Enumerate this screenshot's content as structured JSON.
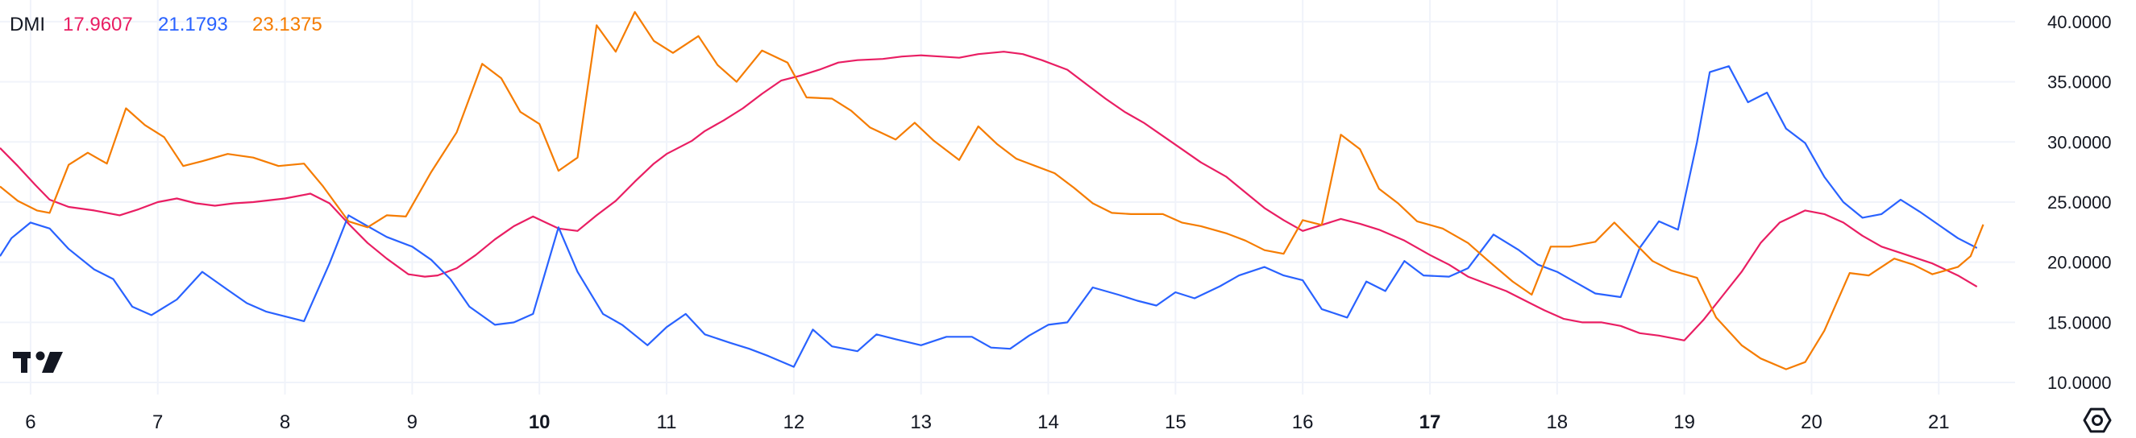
{
  "legend": {
    "indicator": "DMI",
    "values": [
      "17.9607",
      "21.1793",
      "23.1375"
    ]
  },
  "icons": {
    "logo": "tradingview-logo-icon",
    "settings": "settings-gear-icon"
  },
  "colors": {
    "adx": "#e91e63",
    "plus_di": "#2962ff",
    "minus_di": "#f57c00",
    "text": "#131722",
    "grid": "#f0f3fa"
  },
  "chart_data": {
    "type": "line",
    "title": "DMI",
    "xlabel": "",
    "ylabel": "",
    "ylim": [
      9,
      41.8
    ],
    "xlim": [
      5.76,
      21.6
    ],
    "y_ticks": [
      "40.0000",
      "35.0000",
      "30.0000",
      "25.0000",
      "20.0000",
      "15.0000",
      "10.0000"
    ],
    "y_tick_values": [
      40,
      35,
      30,
      25,
      20,
      15,
      10
    ],
    "x_ticks": [
      "6",
      "7",
      "8",
      "9",
      "10",
      "11",
      "12",
      "13",
      "14",
      "15",
      "16",
      "17",
      "18",
      "19",
      "20",
      "21"
    ],
    "x_tick_values": [
      6,
      7,
      8,
      9,
      10,
      11,
      12,
      13,
      14,
      15,
      16,
      17,
      18,
      19,
      20,
      21
    ],
    "x_ticks_bold": [
      "10",
      "17"
    ],
    "grid": true,
    "legend_position": "top-left",
    "series": [
      {
        "values": [
          [
            5.76,
            29.5
          ],
          [
            5.9,
            28.0
          ],
          [
            6.04,
            26.4
          ],
          [
            6.15,
            25.2
          ],
          [
            6.3,
            24.6
          ],
          [
            6.5,
            24.3
          ],
          [
            6.7,
            23.9
          ],
          [
            6.85,
            24.4
          ],
          [
            7.0,
            25.0
          ],
          [
            7.15,
            25.3
          ],
          [
            7.3,
            24.9
          ],
          [
            7.45,
            24.7
          ],
          [
            7.6,
            24.9
          ],
          [
            7.75,
            25.0
          ],
          [
            8.0,
            25.3
          ],
          [
            8.2,
            25.7
          ],
          [
            8.35,
            24.9
          ],
          [
            8.5,
            23.2
          ],
          [
            8.65,
            21.6
          ],
          [
            8.8,
            20.3
          ],
          [
            8.97,
            19.0
          ],
          [
            9.1,
            18.8
          ],
          [
            9.2,
            18.9
          ],
          [
            9.35,
            19.5
          ],
          [
            9.5,
            20.6
          ],
          [
            9.65,
            21.9
          ],
          [
            9.8,
            23.0
          ],
          [
            9.95,
            23.8
          ],
          [
            10.05,
            23.3
          ],
          [
            10.15,
            22.8
          ],
          [
            10.3,
            22.6
          ],
          [
            10.45,
            23.9
          ],
          [
            10.6,
            25.1
          ],
          [
            10.75,
            26.7
          ],
          [
            10.9,
            28.2
          ],
          [
            11.0,
            29.0
          ],
          [
            11.2,
            30.1
          ],
          [
            11.3,
            30.9
          ],
          [
            11.45,
            31.8
          ],
          [
            11.6,
            32.8
          ],
          [
            11.75,
            34.0
          ],
          [
            11.9,
            35.1
          ],
          [
            12.05,
            35.5
          ],
          [
            12.2,
            36.0
          ],
          [
            12.35,
            36.6
          ],
          [
            12.5,
            36.8
          ],
          [
            12.7,
            36.9
          ],
          [
            12.85,
            37.1
          ],
          [
            13.0,
            37.2
          ],
          [
            13.15,
            37.1
          ],
          [
            13.3,
            37.0
          ],
          [
            13.45,
            37.3
          ],
          [
            13.65,
            37.5
          ],
          [
            13.8,
            37.3
          ],
          [
            13.95,
            36.8
          ],
          [
            14.15,
            36.0
          ],
          [
            14.3,
            34.8
          ],
          [
            14.45,
            33.6
          ],
          [
            14.6,
            32.5
          ],
          [
            14.75,
            31.6
          ],
          [
            14.9,
            30.5
          ],
          [
            15.05,
            29.4
          ],
          [
            15.2,
            28.3
          ],
          [
            15.4,
            27.1
          ],
          [
            15.55,
            25.8
          ],
          [
            15.7,
            24.5
          ],
          [
            15.85,
            23.5
          ],
          [
            16.0,
            22.6
          ],
          [
            16.15,
            23.1
          ],
          [
            16.3,
            23.6
          ],
          [
            16.45,
            23.2
          ],
          [
            16.6,
            22.7
          ],
          [
            16.8,
            21.8
          ],
          [
            17.0,
            20.6
          ],
          [
            17.15,
            19.8
          ],
          [
            17.3,
            18.8
          ],
          [
            17.45,
            18.2
          ],
          [
            17.6,
            17.6
          ],
          [
            17.75,
            16.8
          ],
          [
            17.9,
            16.0
          ],
          [
            18.05,
            15.3
          ],
          [
            18.2,
            15.0
          ],
          [
            18.35,
            15.0
          ],
          [
            18.5,
            14.7
          ],
          [
            18.65,
            14.1
          ],
          [
            18.8,
            13.9
          ],
          [
            19.0,
            13.5
          ],
          [
            19.15,
            15.2
          ],
          [
            19.3,
            17.2
          ],
          [
            19.45,
            19.2
          ],
          [
            19.6,
            21.6
          ],
          [
            19.75,
            23.3
          ],
          [
            19.95,
            24.3
          ],
          [
            20.1,
            24.0
          ],
          [
            20.25,
            23.3
          ],
          [
            20.4,
            22.2
          ],
          [
            20.55,
            21.3
          ],
          [
            20.75,
            20.6
          ],
          [
            20.95,
            19.9
          ],
          [
            21.15,
            18.9
          ],
          [
            21.3,
            17.96
          ]
        ]
      },
      {
        "values": [
          [
            5.76,
            20.5
          ],
          [
            5.85,
            22.0
          ],
          [
            6.0,
            23.3
          ],
          [
            6.15,
            22.8
          ],
          [
            6.3,
            21.1
          ],
          [
            6.5,
            19.4
          ],
          [
            6.65,
            18.6
          ],
          [
            6.8,
            16.3
          ],
          [
            6.95,
            15.6
          ],
          [
            7.15,
            16.9
          ],
          [
            7.35,
            19.2
          ],
          [
            7.55,
            17.7
          ],
          [
            7.7,
            16.6
          ],
          [
            7.85,
            15.9
          ],
          [
            8.0,
            15.5
          ],
          [
            8.15,
            15.1
          ],
          [
            8.35,
            19.9
          ],
          [
            8.5,
            23.9
          ],
          [
            8.65,
            23.0
          ],
          [
            8.8,
            22.1
          ],
          [
            9.0,
            21.3
          ],
          [
            9.15,
            20.2
          ],
          [
            9.3,
            18.6
          ],
          [
            9.45,
            16.3
          ],
          [
            9.65,
            14.8
          ],
          [
            9.8,
            15.0
          ],
          [
            9.95,
            15.7
          ],
          [
            10.15,
            22.9
          ],
          [
            10.3,
            19.2
          ],
          [
            10.5,
            15.7
          ],
          [
            10.65,
            14.8
          ],
          [
            10.85,
            13.1
          ],
          [
            11.0,
            14.6
          ],
          [
            11.15,
            15.7
          ],
          [
            11.3,
            14.0
          ],
          [
            11.5,
            13.3
          ],
          [
            11.65,
            12.8
          ],
          [
            11.8,
            12.2
          ],
          [
            12.0,
            11.3
          ],
          [
            12.15,
            14.4
          ],
          [
            12.3,
            13.0
          ],
          [
            12.5,
            12.6
          ],
          [
            12.65,
            14.0
          ],
          [
            12.8,
            13.6
          ],
          [
            13.0,
            13.1
          ],
          [
            13.2,
            13.8
          ],
          [
            13.4,
            13.8
          ],
          [
            13.55,
            12.9
          ],
          [
            13.7,
            12.8
          ],
          [
            13.85,
            13.9
          ],
          [
            14.0,
            14.8
          ],
          [
            14.15,
            15.0
          ],
          [
            14.35,
            17.9
          ],
          [
            14.55,
            17.3
          ],
          [
            14.7,
            16.8
          ],
          [
            14.85,
            16.4
          ],
          [
            15.0,
            17.5
          ],
          [
            15.15,
            17.0
          ],
          [
            15.35,
            18.0
          ],
          [
            15.5,
            18.9
          ],
          [
            15.7,
            19.6
          ],
          [
            15.85,
            18.9
          ],
          [
            16.0,
            18.5
          ],
          [
            16.15,
            16.1
          ],
          [
            16.35,
            15.4
          ],
          [
            16.5,
            18.4
          ],
          [
            16.65,
            17.6
          ],
          [
            16.8,
            20.1
          ],
          [
            16.95,
            18.9
          ],
          [
            17.15,
            18.8
          ],
          [
            17.3,
            19.5
          ],
          [
            17.5,
            22.3
          ],
          [
            17.7,
            21.0
          ],
          [
            17.85,
            19.8
          ],
          [
            18.0,
            19.2
          ],
          [
            18.15,
            18.3
          ],
          [
            18.3,
            17.4
          ],
          [
            18.5,
            17.1
          ],
          [
            18.65,
            21.2
          ],
          [
            18.8,
            23.4
          ],
          [
            18.95,
            22.7
          ],
          [
            19.1,
            30.0
          ],
          [
            19.2,
            35.8
          ],
          [
            19.35,
            36.3
          ],
          [
            19.5,
            33.3
          ],
          [
            19.65,
            34.1
          ],
          [
            19.8,
            31.1
          ],
          [
            19.95,
            29.9
          ],
          [
            20.1,
            27.1
          ],
          [
            20.25,
            25.0
          ],
          [
            20.4,
            23.7
          ],
          [
            20.55,
            24.0
          ],
          [
            20.7,
            25.2
          ],
          [
            20.85,
            24.2
          ],
          [
            21.0,
            23.1
          ],
          [
            21.15,
            22.0
          ],
          [
            21.3,
            21.18
          ]
        ]
      },
      {
        "values": [
          [
            5.76,
            26.3
          ],
          [
            5.9,
            25.1
          ],
          [
            6.05,
            24.3
          ],
          [
            6.15,
            24.1
          ],
          [
            6.3,
            28.1
          ],
          [
            6.45,
            29.1
          ],
          [
            6.6,
            28.2
          ],
          [
            6.75,
            32.8
          ],
          [
            6.9,
            31.4
          ],
          [
            7.05,
            30.4
          ],
          [
            7.2,
            28.0
          ],
          [
            7.35,
            28.4
          ],
          [
            7.55,
            29.0
          ],
          [
            7.75,
            28.7
          ],
          [
            7.95,
            28.0
          ],
          [
            8.15,
            28.2
          ],
          [
            8.3,
            26.3
          ],
          [
            8.5,
            23.4
          ],
          [
            8.65,
            22.9
          ],
          [
            8.8,
            23.9
          ],
          [
            8.95,
            23.8
          ],
          [
            9.15,
            27.5
          ],
          [
            9.35,
            30.8
          ],
          [
            9.55,
            36.5
          ],
          [
            9.7,
            35.3
          ],
          [
            9.85,
            32.5
          ],
          [
            10.0,
            31.5
          ],
          [
            10.15,
            27.6
          ],
          [
            10.3,
            28.7
          ],
          [
            10.45,
            39.7
          ],
          [
            10.6,
            37.5
          ],
          [
            10.75,
            40.8
          ],
          [
            10.9,
            38.4
          ],
          [
            11.05,
            37.4
          ],
          [
            11.25,
            38.8
          ],
          [
            11.4,
            36.4
          ],
          [
            11.55,
            35.0
          ],
          [
            11.75,
            37.6
          ],
          [
            11.95,
            36.6
          ],
          [
            12.1,
            33.7
          ],
          [
            12.3,
            33.6
          ],
          [
            12.45,
            32.6
          ],
          [
            12.6,
            31.2
          ],
          [
            12.8,
            30.2
          ],
          [
            12.95,
            31.6
          ],
          [
            13.1,
            30.1
          ],
          [
            13.3,
            28.5
          ],
          [
            13.45,
            31.3
          ],
          [
            13.6,
            29.8
          ],
          [
            13.75,
            28.6
          ],
          [
            13.9,
            28.0
          ],
          [
            14.05,
            27.4
          ],
          [
            14.2,
            26.2
          ],
          [
            14.35,
            24.9
          ],
          [
            14.5,
            24.1
          ],
          [
            14.65,
            24.0
          ],
          [
            14.9,
            24.0
          ],
          [
            15.05,
            23.3
          ],
          [
            15.2,
            23.0
          ],
          [
            15.4,
            22.4
          ],
          [
            15.55,
            21.8
          ],
          [
            15.7,
            21.0
          ],
          [
            15.85,
            20.7
          ],
          [
            16.0,
            23.5
          ],
          [
            16.15,
            23.1
          ],
          [
            16.3,
            30.6
          ],
          [
            16.45,
            29.4
          ],
          [
            16.6,
            26.1
          ],
          [
            16.75,
            24.9
          ],
          [
            16.9,
            23.4
          ],
          [
            17.1,
            22.8
          ],
          [
            17.3,
            21.6
          ],
          [
            17.45,
            20.2
          ],
          [
            17.65,
            18.4
          ],
          [
            17.8,
            17.3
          ],
          [
            17.95,
            21.3
          ],
          [
            18.1,
            21.3
          ],
          [
            18.3,
            21.7
          ],
          [
            18.45,
            23.3
          ],
          [
            18.6,
            21.7
          ],
          [
            18.75,
            20.1
          ],
          [
            18.9,
            19.3
          ],
          [
            19.1,
            18.7
          ],
          [
            19.25,
            15.4
          ],
          [
            19.45,
            13.1
          ],
          [
            19.6,
            12.0
          ],
          [
            19.8,
            11.1
          ],
          [
            19.95,
            11.7
          ],
          [
            20.1,
            14.3
          ],
          [
            20.3,
            19.1
          ],
          [
            20.45,
            18.9
          ],
          [
            20.65,
            20.3
          ],
          [
            20.8,
            19.8
          ],
          [
            20.95,
            19.0
          ],
          [
            21.15,
            19.6
          ],
          [
            21.25,
            20.5
          ],
          [
            21.35,
            23.14
          ]
        ]
      }
    ]
  }
}
